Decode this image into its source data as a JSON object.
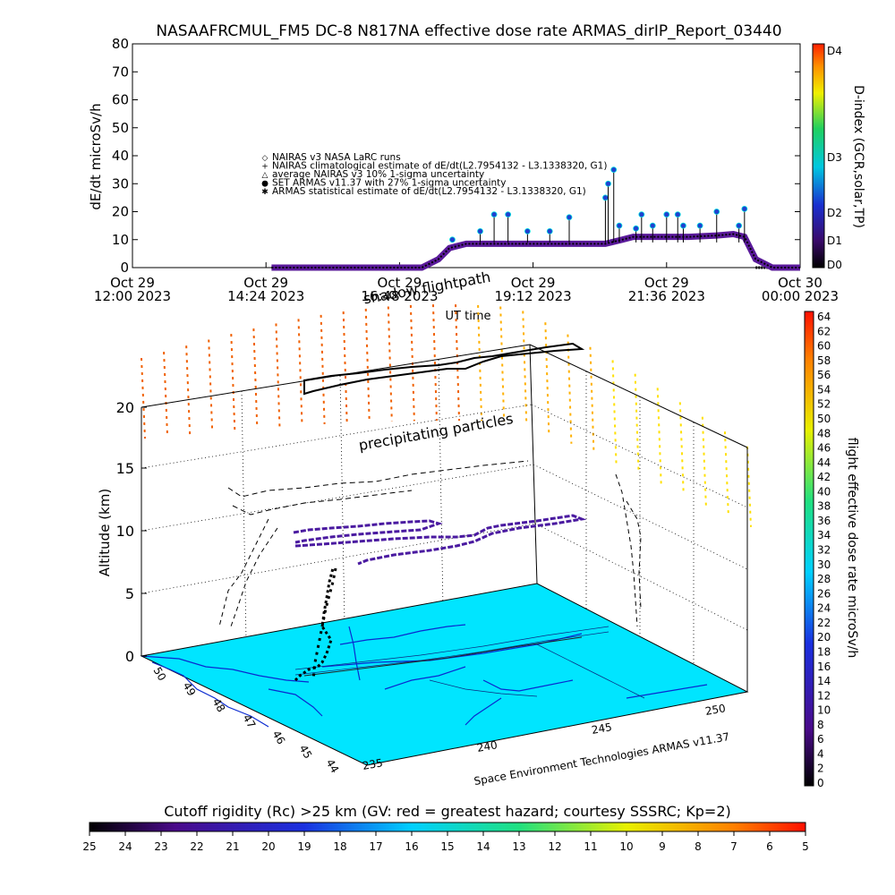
{
  "title": "NASAAFRCMUL_FM5 DC-8    N817NA effective dose rate ARMAS_dirIP_Report_03440",
  "colors": {
    "ground": "#00e5ff",
    "black": "#000000",
    "nairas_series": "#5a1a9a",
    "armas_series": "#2040d0",
    "armas_edge": "#00e0e0"
  },
  "chart_data": [
    {
      "type": "scatter",
      "name": "dose-rate-timeseries",
      "ylabel": "dE/dt microSv/h",
      "ylim": [
        0,
        80
      ],
      "yticks": [
        0,
        10,
        20,
        30,
        40,
        50,
        60,
        70,
        80
      ],
      "xlabel": "UT time",
      "xticks": [
        {
          "line1": "Oct 29",
          "line2": "12:00 2023"
        },
        {
          "line1": "Oct 29",
          "line2": "14:24 2023"
        },
        {
          "line1": "Oct 29",
          "line2": "16:48 2023"
        },
        {
          "line1": "Oct 29",
          "line2": "19:12 2023"
        },
        {
          "line1": "Oct 29",
          "line2": "21:36 2023"
        },
        {
          "line1": "Oct 30",
          "line2": "00:00 2023"
        }
      ],
      "right_axis": {
        "label": "D-index (GCR,solar,TP)",
        "ticks": [
          "D0",
          "D1",
          "D2",
          "D3",
          "D4"
        ]
      },
      "legend": {
        "placement": "upper-center",
        "entries": [
          {
            "symbol": "◇",
            "text": "NAIRAS v3 NASA LaRC runs"
          },
          {
            "symbol": "+",
            "text": "NAIRAS climatological estimate of dE/dt(L2.7954132 - L3.1338320, G1)"
          },
          {
            "symbol": "△",
            "text": "average NAIRAS v3 10% 1-sigma uncertainty"
          },
          {
            "symbol": "●",
            "text": "SET ARMAS v11.37 with 27% 1-sigma uncertainty"
          },
          {
            "symbol": "✱",
            "text": "ARMAS statistical estimate of dE/dt(L2.7954132 - L3.1338320, G1)"
          }
        ]
      },
      "series": [
        {
          "name": "NAIRAS v3 NASA LaRC runs",
          "x_hours": [
            14.5,
            15.5,
            16.5,
            17.2,
            17.5,
            17.7,
            18.0,
            18.5,
            19.0,
            19.5,
            20.0,
            20.5,
            20.8,
            21.0,
            21.5,
            22.0,
            22.5,
            22.8,
            23.0,
            23.2,
            23.5,
            24.0
          ],
          "values": [
            0,
            0,
            0,
            0,
            3,
            7,
            8.5,
            8.5,
            8.5,
            8.5,
            8.5,
            8.5,
            10,
            11,
            11,
            11,
            11.5,
            12,
            11,
            3,
            0,
            0
          ]
        },
        {
          "name": "SET ARMAS v11.37 with 27% 1-sigma uncertainty",
          "x_hours": [
            17.75,
            18.25,
            18.5,
            18.75,
            19.1,
            19.5,
            19.85,
            20.5,
            20.55,
            20.65,
            20.75,
            21.05,
            21.15,
            21.35,
            21.6,
            21.8,
            21.9,
            22.2,
            22.5,
            22.9,
            23.0
          ],
          "values": [
            10,
            13,
            19,
            19,
            13,
            13,
            18,
            25,
            30,
            35,
            15,
            14,
            19,
            15,
            19,
            19,
            15,
            15,
            20,
            15,
            21
          ]
        }
      ]
    },
    {
      "type": "scatter",
      "name": "3d-flightpath",
      "zlabel": "Altitude (km)",
      "zticks": [
        0,
        5,
        10,
        15,
        20
      ],
      "x_axis_ticks": [
        "235",
        "240",
        "245",
        "250"
      ],
      "y_axis_ticks": [
        "44",
        "45",
        "46",
        "47",
        "48",
        "49",
        "50"
      ],
      "annotations": [
        "shadow flightpath",
        "precipitating particles"
      ],
      "credit": "Space Environment Technologies ARMAS v11.37",
      "right_colorbar": {
        "label": "flight effective dose rate microSv/h",
        "ticks": [
          0,
          2,
          4,
          6,
          8,
          10,
          12,
          14,
          16,
          18,
          20,
          22,
          24,
          26,
          28,
          30,
          32,
          34,
          36,
          38,
          40,
          42,
          44,
          46,
          48,
          50,
          52,
          54,
          56,
          58,
          60,
          62,
          64
        ]
      },
      "bottom_colorbar": {
        "label": "Cutoff rigidity (Rc) >25 km (GV: red = greatest hazard; courtesy SSSRC; Kp=2)",
        "ticks": [
          25,
          24,
          23,
          22,
          21,
          20,
          19,
          18,
          17,
          16,
          15,
          14,
          13,
          12,
          11,
          10,
          9,
          8,
          7,
          6,
          5
        ]
      }
    }
  ]
}
